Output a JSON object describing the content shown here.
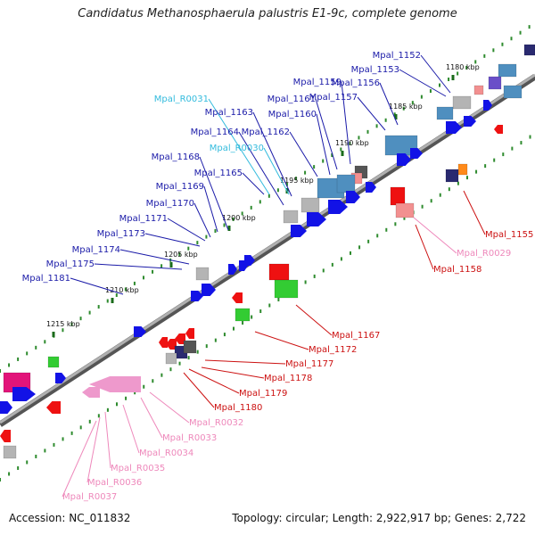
{
  "title": "Candidatus Methanosphaerula palustris E1-9c, complete genome",
  "footer": {
    "accession": "Accession: NC_011832",
    "topology": "Topology: circular; Length: 2,922,917 bp; Genes: 2,722"
  },
  "colors": {
    "backbone": "#8a8a8a",
    "tick": "#2e8b2e",
    "forward_label": "#1a1aa8",
    "cds_reverse_label": "#cc1111",
    "trna_forward_label": "#33bbdd",
    "rna_reverse_label": "#ee88bb"
  },
  "kbp_ticks": [
    "1180 kbp",
    "1185 kbp",
    "1190 kbp",
    "1195 kbp",
    "1200 kbp",
    "1205 kbp",
    "1210 kbp",
    "1215 kbp"
  ],
  "forward_labels": [
    "Mpal_1152",
    "Mpal_1153",
    "Mpal_1156",
    "Mpal_1157",
    "Mpal_1159",
    "Mpal_1161",
    "Mpal_1160",
    "Mpal_1163",
    "Mpal_1162",
    "Mpal_1164",
    "Mpal_1168",
    "Mpal_1165",
    "Mpal_1169",
    "Mpal_1170",
    "Mpal_1171",
    "Mpal_1173",
    "Mpal_1174",
    "Mpal_1175",
    "Mpal_1181"
  ],
  "forward_rna_labels": [
    "Mpal_R0031",
    "Mpal_R0030"
  ],
  "reverse_labels": [
    "Mpal_1155",
    "Mpal_1158",
    "Mpal_1167",
    "Mpal_1172",
    "Mpal_1177",
    "Mpal_1178",
    "Mpal_1179",
    "Mpal_1180"
  ],
  "reverse_rna_labels": [
    "Mpal_R0029",
    "Mpal_R0032",
    "Mpal_R0033",
    "Mpal_R0034",
    "Mpal_R0035",
    "Mpal_R0036",
    "Mpal_R0037"
  ]
}
